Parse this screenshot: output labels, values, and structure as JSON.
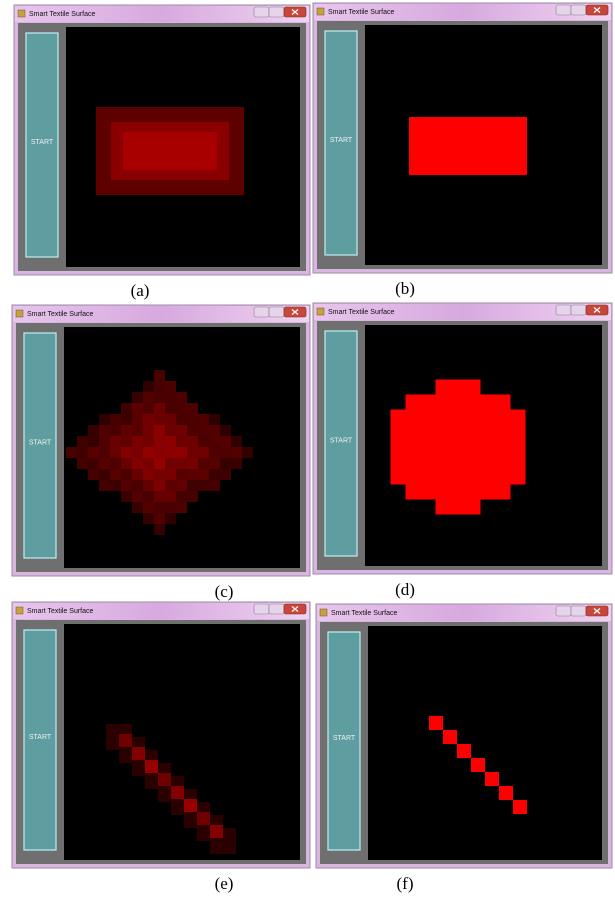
{
  "panels": [
    {
      "window_title": "Smart Textile Surface",
      "button": "START",
      "caption": "(a)"
    },
    {
      "window_title": "Smart Textile Surface",
      "button": "START",
      "caption": "(b)"
    },
    {
      "window_title": "Smart Textile Surface",
      "button": "START",
      "caption": "(c)"
    },
    {
      "window_title": "Smart Textile Surface",
      "button": "START",
      "caption": "(d)"
    },
    {
      "window_title": "Smart Textile Surface",
      "button": "START",
      "caption": "(e)"
    },
    {
      "window_title": "Smart Textile Surface",
      "button": "START",
      "caption": "(f)"
    }
  ]
}
